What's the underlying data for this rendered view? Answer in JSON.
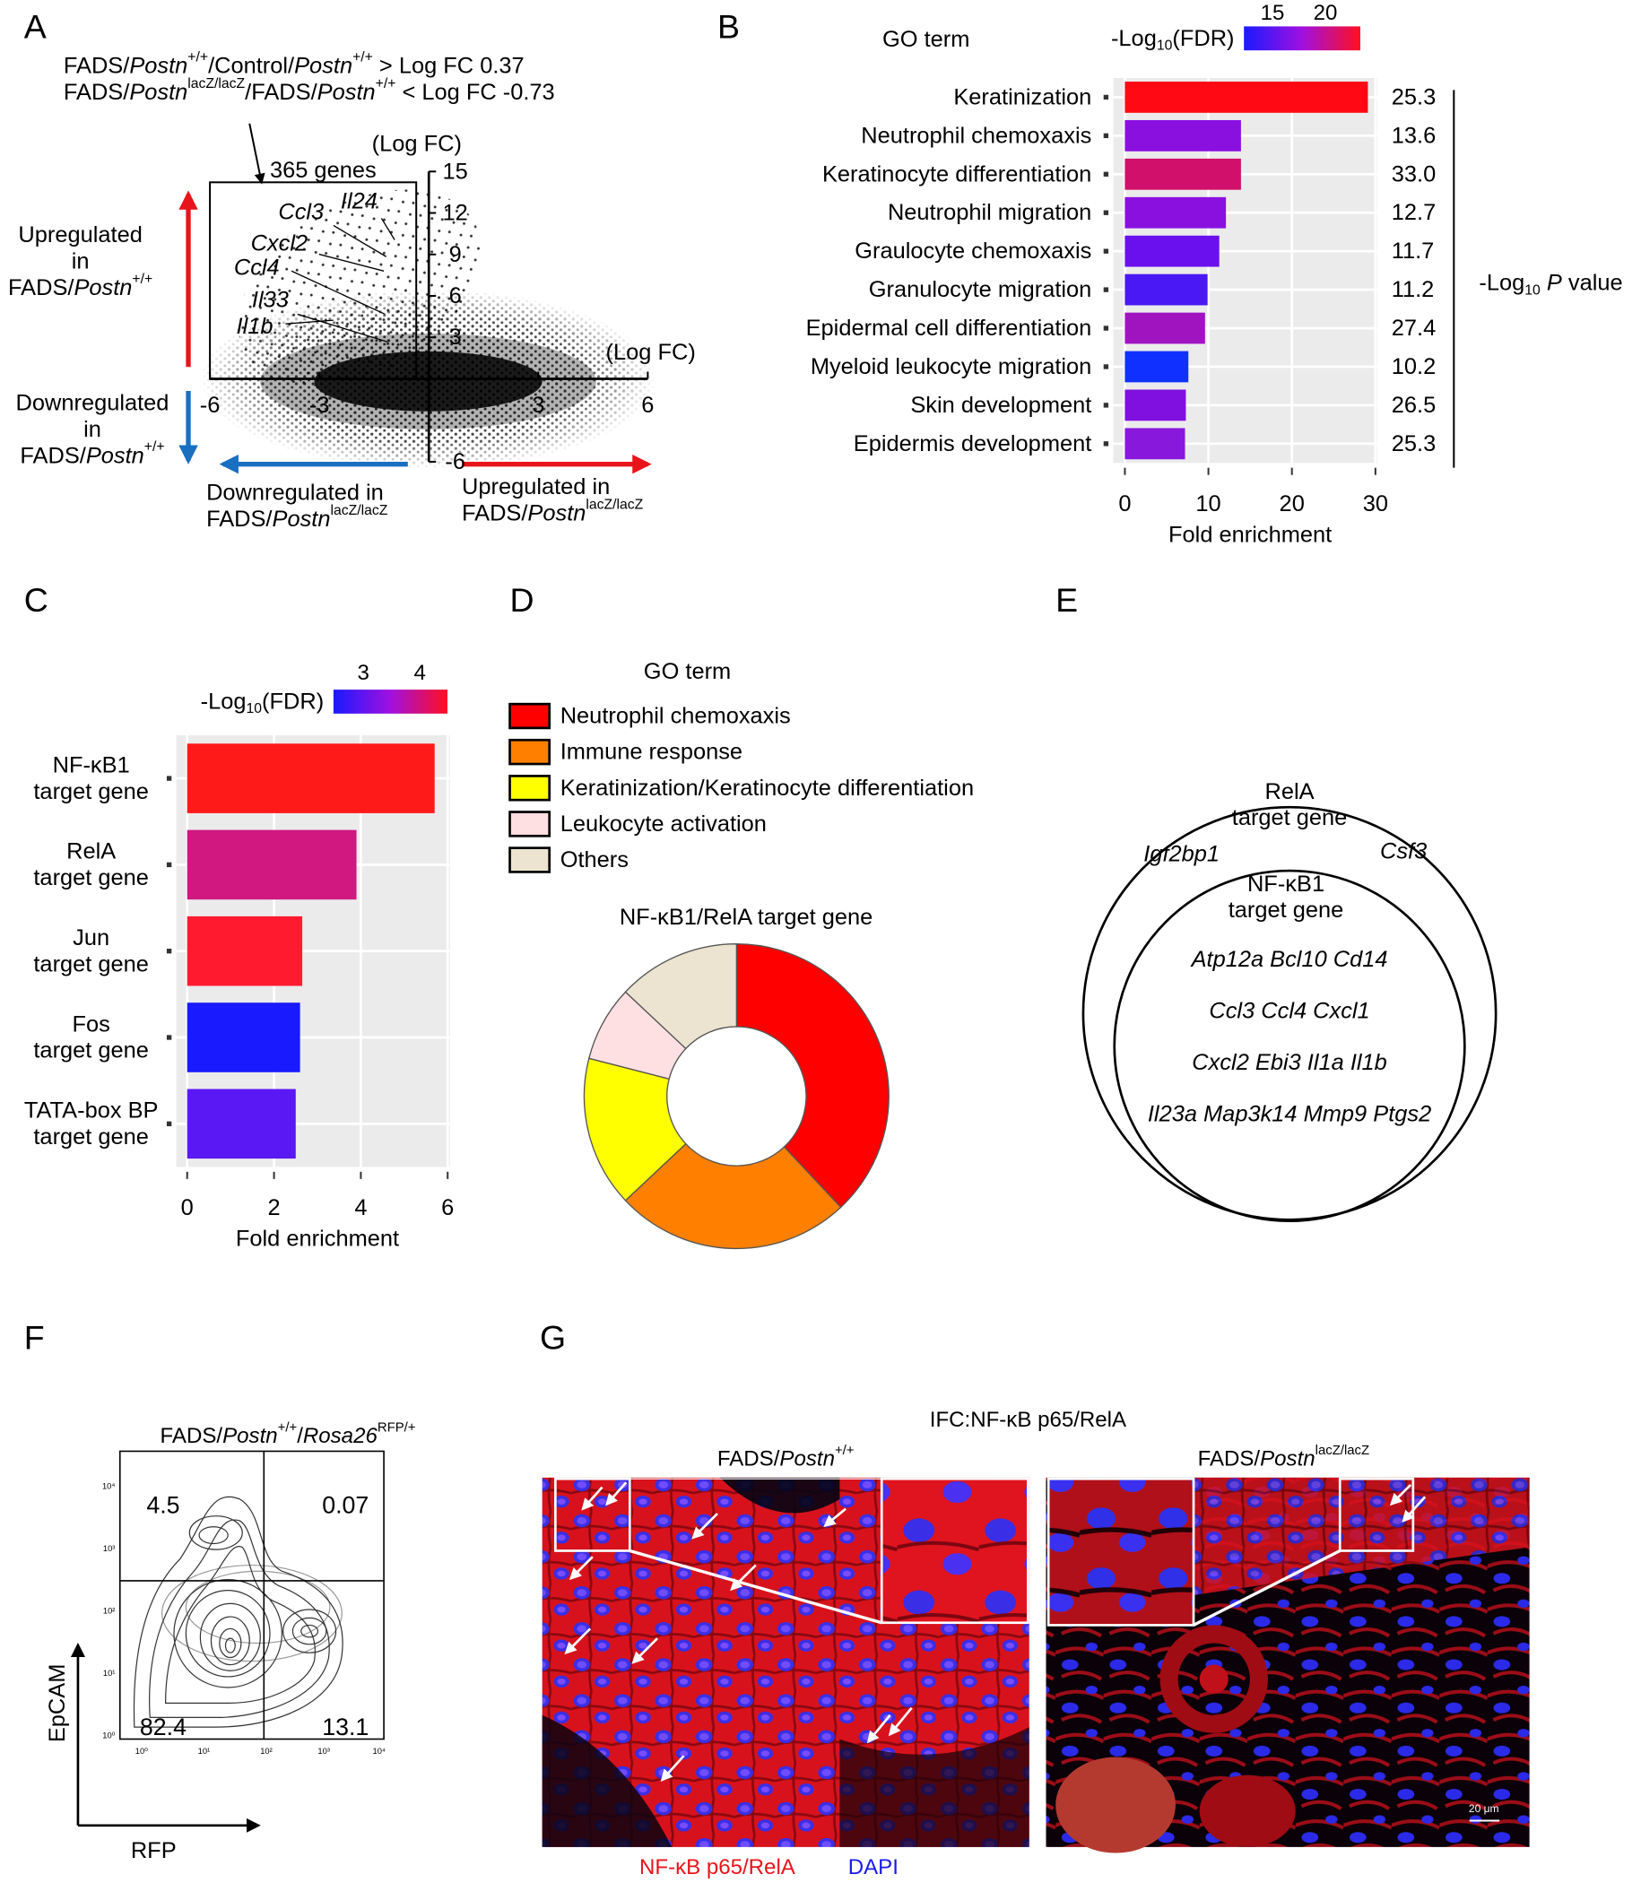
{
  "panel_labels": [
    "A",
    "B",
    "C",
    "D",
    "E",
    "F",
    "G"
  ],
  "panel_a": {
    "criteria": [
      [
        {
          "text": "FADS/"
        },
        {
          "text": "Postn",
          "style": "italic"
        },
        {
          "text": "+/+",
          "style": "sup"
        },
        {
          "text": "/Control/"
        },
        {
          "text": "Postn",
          "style": "italic"
        },
        {
          "text": "+/+",
          "style": "sup"
        },
        {
          "text": " > Log FC 0.37"
        }
      ],
      [
        {
          "text": "FADS/"
        },
        {
          "text": "Postn",
          "style": "italic"
        },
        {
          "text": "lacZ/lacZ",
          "style": "sup"
        },
        {
          "text": "/FADS/"
        },
        {
          "text": "Postn",
          "style": "italic"
        },
        {
          "text": "+/+",
          "style": "sup"
        },
        {
          "text": " < Log FC -0.73"
        }
      ]
    ],
    "gene_count": "365 genes",
    "x_label": "(Log FC)",
    "y_label": "(Log FC)",
    "xlim": [
      -6,
      6
    ],
    "xticks": [
      -6,
      -3,
      3,
      6
    ],
    "ylim": [
      -6,
      15
    ],
    "yticks": [
      -6,
      3,
      6,
      9,
      12,
      15
    ],
    "genes": [
      "Ccl3",
      "Il24",
      "Cxcl2",
      "Ccl4",
      "Il33",
      "Il1b"
    ],
    "up_wt": [
      [
        {
          "text": "Upregulated"
        }
      ],
      [
        {
          "text": "in"
        }
      ],
      [
        {
          "text": "FADS/"
        },
        {
          "text": "Postn",
          "style": "italic"
        },
        {
          "text": "+/+",
          "style": "sup"
        }
      ]
    ],
    "down_wt": [
      [
        {
          "text": "Downregulated"
        }
      ],
      [
        {
          "text": "in"
        }
      ],
      [
        {
          "text": "FADS/"
        },
        {
          "text": "Postn",
          "style": "italic"
        },
        {
          "text": "+/+",
          "style": "sup"
        }
      ]
    ],
    "down_ko": [
      [
        {
          "text": "Downregulated in"
        }
      ],
      [
        {
          "text": "FADS/"
        },
        {
          "text": "Postn",
          "style": "italic"
        },
        {
          "text": "lacZ/lacZ",
          "style": "sup"
        }
      ]
    ],
    "up_ko": [
      [
        {
          "text": "Upregulated in"
        }
      ],
      [
        {
          "text": "FADS/"
        },
        {
          "text": "Postn",
          "style": "italic"
        },
        {
          "text": "lacZ/lacZ",
          "style": "sup"
        }
      ]
    ]
  },
  "chart_data": [
    {
      "type": "barh",
      "title": "GO term",
      "categories": [
        "Keratinization",
        "Neutrophil chemoxaxis",
        "Keratinocyte differentiation",
        "Neutrophil migration",
        "Graulocyte chemoxaxis",
        "Granulocyte migration",
        "Epidermal cell differentiation",
        "Myeloid leukocyte migration",
        "Skin development",
        "Epidermis development"
      ],
      "values": [
        29.1,
        13.9,
        13.9,
        12.1,
        11.3,
        9.9,
        9.6,
        7.6,
        7.3,
        7.2
      ],
      "colors": [
        "#ff0a14",
        "#8a10e0",
        "#d0106a",
        "#8a10e0",
        "#6a10ee",
        "#4a18f4",
        "#a014c0",
        "#1030ff",
        "#8010e0",
        "#8818dc"
      ],
      "right_labels": [
        "25.3",
        "13.6",
        "33.0",
        "12.7",
        "11.7",
        "11.2",
        "27.4",
        "10.2",
        "26.5",
        "25.3"
      ],
      "right_title": [
        {
          "text": "-Log"
        },
        {
          "text": "10",
          "style": "sub"
        },
        {
          "text": " "
        },
        {
          "text": "P",
          "style": "italic"
        },
        {
          "text": " value"
        }
      ],
      "x_label": "Fold enrichment",
      "xlim": [
        -1.4,
        30.2
      ],
      "xticks": [
        0,
        10,
        20,
        30
      ],
      "grid": true,
      "colorbar": {
        "label": [
          {
            "text": "-Log"
          },
          {
            "text": "10",
            "style": "sub"
          },
          {
            "text": "(FDR)"
          }
        ],
        "lim": [
          12.3,
          23.3
        ],
        "ticks": [
          15,
          20
        ],
        "colors": [
          "#1a1aff",
          "#a010e0",
          "#ff1020"
        ]
      }
    },
    {
      "type": "barh",
      "categories": [
        [
          "NF-κB1",
          "target gene"
        ],
        [
          "RelA",
          "target gene"
        ],
        [
          "Jun",
          "target gene"
        ],
        [
          "Fos",
          "target gene"
        ],
        [
          "TATA-box BP",
          "target gene"
        ]
      ],
      "values": [
        5.7,
        3.9,
        2.65,
        2.6,
        2.5
      ],
      "colors": [
        "#ff1a1a",
        "#d01880",
        "#ff1a30",
        "#1a1aff",
        "#5a18f4"
      ],
      "x_label": "Fold enrichment",
      "xlim": [
        -0.25,
        6.05
      ],
      "xticks": [
        0,
        2,
        4,
        6
      ],
      "grid": true,
      "colorbar": {
        "label": [
          {
            "text": "-Log"
          },
          {
            "text": "10",
            "style": "sub"
          },
          {
            "text": "(FDR)"
          }
        ],
        "lim": [
          2.47,
          4.49
        ],
        "ticks": [
          3,
          4
        ],
        "colors": [
          "#1a1aff",
          "#a010e0",
          "#ff1020"
        ]
      }
    },
    {
      "type": "donut",
      "legend_title": "GO term",
      "title": "NF-κB1/RelA target gene",
      "categories": [
        "Neutrophil chemoxaxis",
        "Immune response",
        "Keratinization/Keratinocyte differentiation",
        "Leukocyte activation",
        "Others"
      ],
      "values": [
        38,
        25,
        16,
        8,
        13
      ],
      "colors": [
        "#ff0000",
        "#ff8000",
        "#ffff00",
        "#ffe0e2",
        "#ece4d0"
      ]
    }
  ],
  "panel_e": {
    "outer_label": [
      "RelA",
      "target gene"
    ],
    "outer_genes": [
      "Igf2bp1",
      "Csf3"
    ],
    "inner_label": [
      "NF-κB1",
      "target gene"
    ],
    "inner_genes": [
      "Atp12a Bcl10 Cd14",
      "Ccl3 Ccl4 Cxcl1",
      "Cxcl2 Ebi3 Il1a Il1b",
      "Il23a Map3k14 Mmp9 Ptgs2"
    ]
  },
  "panel_f": {
    "title": [
      {
        "text": "FADS/"
      },
      {
        "text": "Postn",
        "style": "italic"
      },
      {
        "text": "+/+",
        "style": "sup"
      },
      {
        "text": "/"
      },
      {
        "text": "Rosa26",
        "style": "italic"
      },
      {
        "text": "RFP/+",
        "style": "sup"
      }
    ],
    "quadrants": {
      "upper_left": 4.5,
      "upper_right": 0.07,
      "lower_left": 82.4,
      "lower_right": 13.1
    },
    "y_label": "EpCAM",
    "x_label": "RFP",
    "axis_ticks": [
      "10⁰",
      "10¹",
      "10²",
      "10³",
      "10⁴"
    ]
  },
  "panel_g": {
    "title": "IFC:NF-κB p65/RelA",
    "left_title": [
      {
        "text": "FADS/"
      },
      {
        "text": "Postn",
        "style": "italic"
      },
      {
        "text": "+/+",
        "style": "sup"
      }
    ],
    "right_title": [
      {
        "text": "FADS/"
      },
      {
        "text": "Postn",
        "style": "italic"
      },
      {
        "text": "lacZ/lacZ",
        "style": "sup"
      }
    ],
    "legend": [
      "NF-κB p65/RelA",
      "DAPI"
    ],
    "scale_bar": "20 μm"
  }
}
